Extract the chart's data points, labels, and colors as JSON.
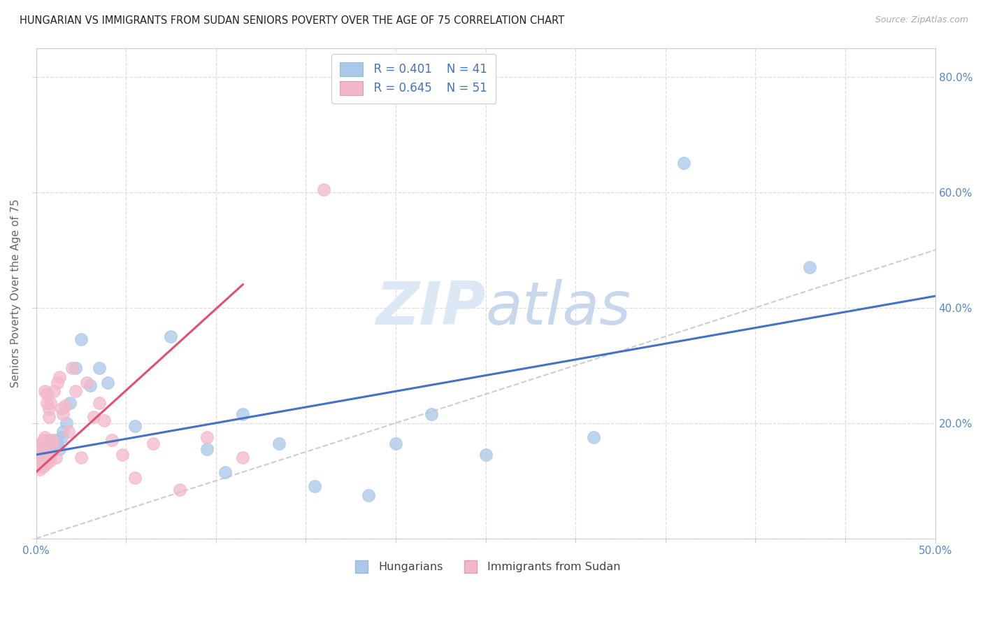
{
  "title": "HUNGARIAN VS IMMIGRANTS FROM SUDAN SENIORS POVERTY OVER THE AGE OF 75 CORRELATION CHART",
  "source": "Source: ZipAtlas.com",
  "ylabel": "Seniors Poverty Over the Age of 75",
  "xlim": [
    0.0,
    0.5
  ],
  "ylim": [
    0.0,
    0.85
  ],
  "xticks": [
    0.0,
    0.05,
    0.1,
    0.15,
    0.2,
    0.25,
    0.3,
    0.35,
    0.4,
    0.45,
    0.5
  ],
  "xticklabels_left": "0.0%",
  "xticklabels_right": "50.0%",
  "yticks": [
    0.0,
    0.2,
    0.4,
    0.6,
    0.8
  ],
  "yticklabels": [
    "",
    "20.0%",
    "40.0%",
    "60.0%",
    "80.0%"
  ],
  "legend_R1": "R = 0.401",
  "legend_N1": "N = 41",
  "legend_R2": "R = 0.645",
  "legend_N2": "N = 51",
  "hungarian_color": "#aac8e8",
  "sudan_color": "#f2b8ca",
  "hungarian_line_color": "#4472c4",
  "sudan_line_color": "#e05070",
  "diagonal_color": "#c8c8c8",
  "watermark_color": "#dce8f5",
  "hungarian_x": [
    0.001,
    0.002,
    0.002,
    0.003,
    0.003,
    0.004,
    0.004,
    0.005,
    0.005,
    0.006,
    0.007,
    0.007,
    0.008,
    0.009,
    0.01,
    0.011,
    0.012,
    0.013,
    0.014,
    0.015,
    0.017,
    0.019,
    0.022,
    0.025,
    0.03,
    0.035,
    0.04,
    0.055,
    0.075,
    0.095,
    0.105,
    0.115,
    0.135,
    0.155,
    0.185,
    0.2,
    0.22,
    0.25,
    0.31,
    0.36,
    0.43
  ],
  "hungarian_y": [
    0.145,
    0.155,
    0.135,
    0.15,
    0.16,
    0.14,
    0.155,
    0.145,
    0.165,
    0.155,
    0.15,
    0.17,
    0.155,
    0.165,
    0.155,
    0.17,
    0.165,
    0.155,
    0.175,
    0.185,
    0.2,
    0.235,
    0.295,
    0.345,
    0.265,
    0.295,
    0.27,
    0.195,
    0.35,
    0.155,
    0.115,
    0.215,
    0.165,
    0.09,
    0.075,
    0.165,
    0.215,
    0.145,
    0.175,
    0.65,
    0.47
  ],
  "sudan_x": [
    0.001,
    0.001,
    0.001,
    0.002,
    0.002,
    0.002,
    0.003,
    0.003,
    0.003,
    0.003,
    0.004,
    0.004,
    0.004,
    0.004,
    0.005,
    0.005,
    0.005,
    0.005,
    0.006,
    0.006,
    0.006,
    0.007,
    0.007,
    0.007,
    0.008,
    0.008,
    0.009,
    0.009,
    0.01,
    0.011,
    0.012,
    0.013,
    0.014,
    0.015,
    0.016,
    0.018,
    0.02,
    0.022,
    0.025,
    0.028,
    0.032,
    0.035,
    0.038,
    0.042,
    0.048,
    0.055,
    0.065,
    0.08,
    0.095,
    0.115,
    0.16
  ],
  "sudan_y": [
    0.145,
    0.135,
    0.125,
    0.16,
    0.15,
    0.12,
    0.165,
    0.15,
    0.135,
    0.125,
    0.17,
    0.155,
    0.14,
    0.125,
    0.175,
    0.16,
    0.145,
    0.255,
    0.25,
    0.235,
    0.13,
    0.225,
    0.21,
    0.14,
    0.235,
    0.135,
    0.17,
    0.165,
    0.255,
    0.14,
    0.27,
    0.28,
    0.225,
    0.215,
    0.23,
    0.185,
    0.295,
    0.255,
    0.14,
    0.27,
    0.21,
    0.235,
    0.205,
    0.17,
    0.145,
    0.105,
    0.165,
    0.085,
    0.175,
    0.14,
    0.605
  ],
  "hung_line_x": [
    0.0,
    0.5
  ],
  "hung_line_y": [
    0.145,
    0.42
  ],
  "sud_line_x": [
    0.0,
    0.115
  ],
  "sud_line_y": [
    0.115,
    0.44
  ]
}
